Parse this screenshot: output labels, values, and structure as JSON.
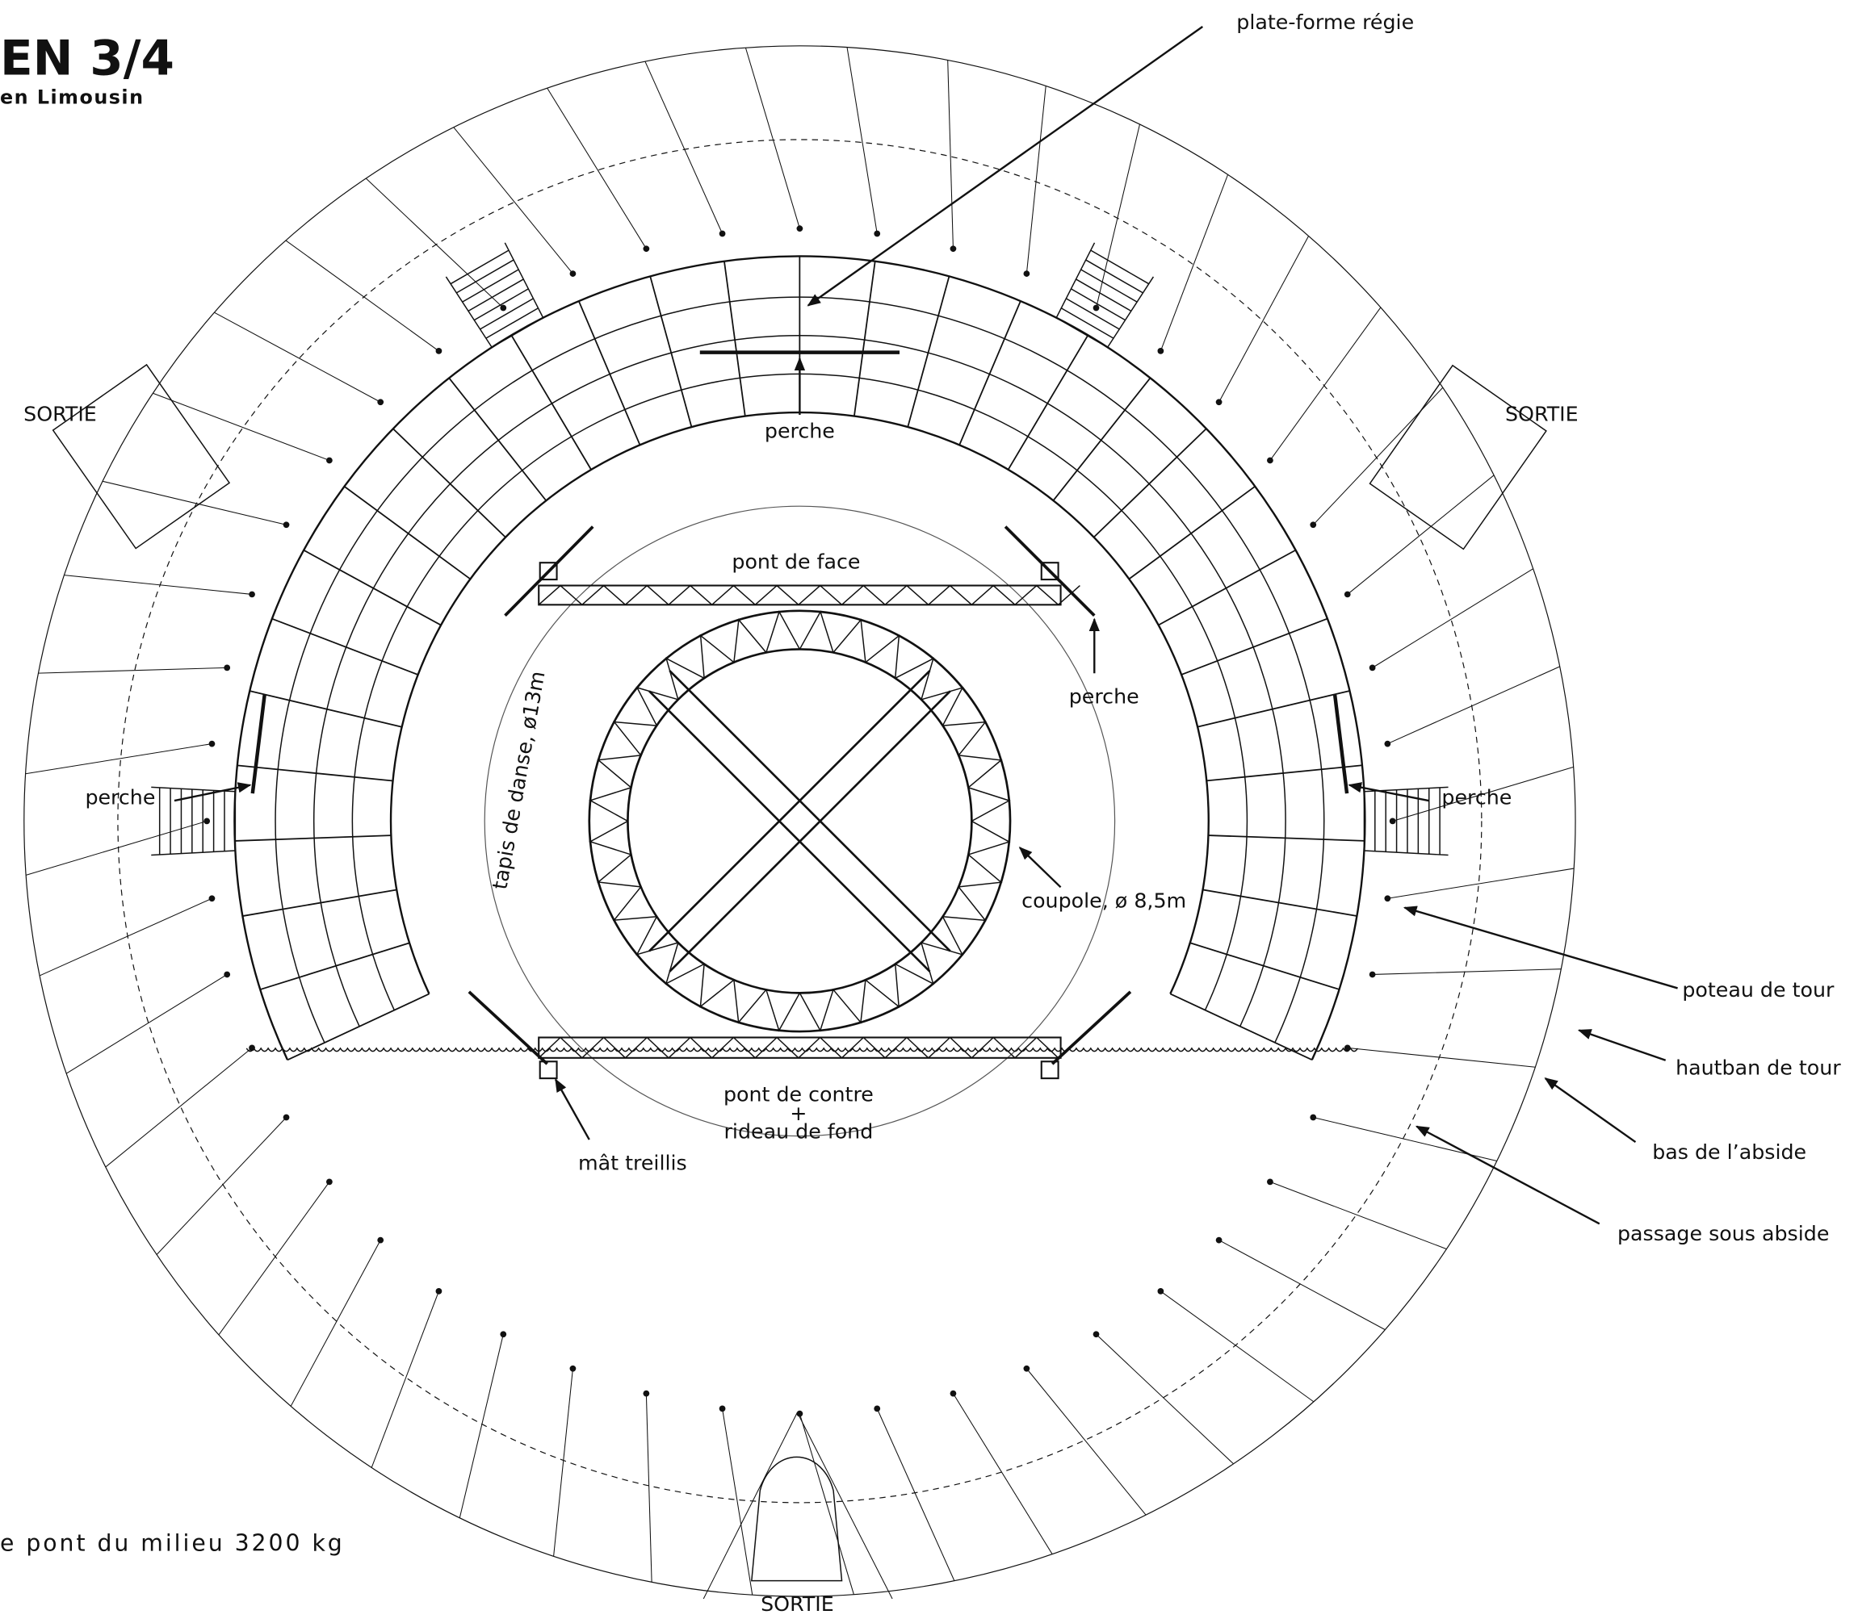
{
  "header": {
    "title": "EN 3/4",
    "subtitle": "en Limousin"
  },
  "labels": {
    "platform": "plate-forme régie",
    "exit_left": "SORTIE",
    "exit_right": "SORTIE",
    "exit_bottom": "SORTIE",
    "perche_top": "perche",
    "perche_right_front": "perche",
    "perche_left": "perche",
    "perche_right": "perche",
    "front_bridge": "pont de face",
    "dance_floor": "tapis de danse, ø13m",
    "dome": "coupole, ø 8,5m",
    "back_bridge": "pont de contre",
    "plus": "+",
    "back_curtain": "rideau de fond",
    "mast": "mât treillis",
    "tower_post": "poteau de tour",
    "tower_guy": "hautban de tour",
    "apse_bottom": "bas de l’abside",
    "apse_passage": "passage sous abside"
  },
  "note": "e pont du milieu 3200 kg"
}
